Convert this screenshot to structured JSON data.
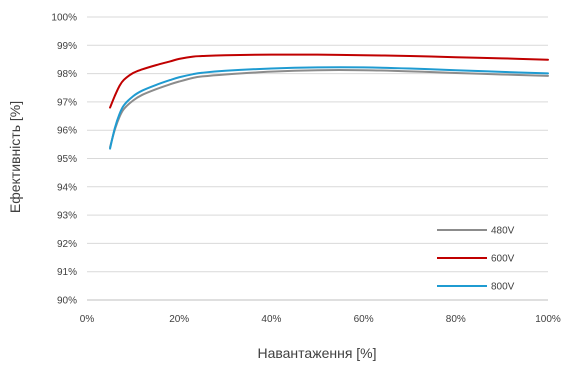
{
  "chart_data": {
    "type": "line",
    "title": "",
    "xlabel": "Навантаження [%]",
    "ylabel": "Ефективність [%]",
    "xlim": [
      0,
      100
    ],
    "ylim": [
      90,
      100
    ],
    "x_ticks": [
      "0%",
      "20%",
      "40%",
      "60%",
      "80%",
      "100%"
    ],
    "y_ticks": [
      "90%",
      "91%",
      "92%",
      "93%",
      "94%",
      "95%",
      "96%",
      "97%",
      "98%",
      "99%",
      "100%"
    ],
    "grid": "horizontal",
    "legend_position": "bottom-right",
    "series": [
      {
        "name": "480V",
        "color": "#8c8c8c",
        "x": [
          5,
          6,
          7,
          8,
          10,
          12,
          15,
          18,
          20,
          23,
          25,
          30,
          40,
          50,
          60,
          70,
          80,
          90,
          100
        ],
        "y": [
          95.4,
          96.0,
          96.45,
          96.75,
          97.05,
          97.25,
          97.45,
          97.62,
          97.72,
          97.85,
          97.9,
          97.97,
          98.07,
          98.12,
          98.12,
          98.08,
          98.02,
          97.97,
          97.92
        ]
      },
      {
        "name": "600V",
        "color": "#c00000",
        "x": [
          5,
          6,
          7,
          8,
          10,
          12,
          15,
          18,
          20,
          23,
          25,
          30,
          40,
          50,
          60,
          70,
          80,
          90,
          100
        ],
        "y": [
          96.8,
          97.2,
          97.55,
          97.78,
          98.02,
          98.15,
          98.3,
          98.43,
          98.52,
          98.6,
          98.62,
          98.65,
          98.67,
          98.67,
          98.65,
          98.62,
          98.58,
          98.54,
          98.49
        ]
      },
      {
        "name": "800V",
        "color": "#1f9bd1",
        "x": [
          5,
          6,
          7,
          8,
          10,
          12,
          15,
          18,
          20,
          23,
          25,
          30,
          40,
          50,
          60,
          70,
          80,
          90,
          100
        ],
        "y": [
          95.35,
          96.05,
          96.55,
          96.88,
          97.2,
          97.4,
          97.6,
          97.77,
          97.87,
          97.98,
          98.03,
          98.1,
          98.18,
          98.22,
          98.22,
          98.18,
          98.12,
          98.06,
          98.01
        ]
      }
    ]
  }
}
